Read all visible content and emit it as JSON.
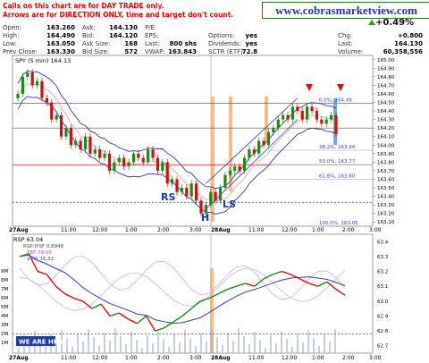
{
  "notes": {
    "line1": "Calls on this chart are for DAY TRADE only.",
    "line2": "Arrows are for DIRECTION ONLY, time and target don't count."
  },
  "site": "www.cobrasmarketview.com",
  "quote": {
    "change_pct": "+0.49%",
    "left_labels": [
      "Open:",
      "High:",
      "Low:",
      "Prev Close:"
    ],
    "left_values": [
      "163.260",
      "164.490",
      "163.050",
      "163.330"
    ],
    "mid_labels": [
      "Ask:",
      "Bid:",
      "Ask Size:",
      "Bid Size:"
    ],
    "mid_values": [
      "164.130",
      "164.120",
      "168",
      "572"
    ],
    "mid2_labels": [
      "P/E:",
      "EPS:",
      "Last:",
      "VWAP:"
    ],
    "mid2_values": [
      "",
      "",
      "800 shs",
      "163.843"
    ],
    "right_labels": [
      "Options:",
      "Dividends:",
      "SCTR (ETF):"
    ],
    "right_values": [
      "yes",
      "yes",
      "72.8"
    ],
    "far_labels": [
      "Chg:",
      "Last:",
      "Volume:"
    ],
    "far_values": [
      "+0.800",
      "164.130",
      "60,358,556"
    ]
  },
  "colors": {
    "price_up": "#1a8a1a",
    "price_down": "#cc1111",
    "bollinger": "#2b3fb0",
    "fib_line": "#cc2222",
    "highlight": "#f4a460",
    "label_blue": "#1638b8"
  },
  "chart_data": [
    {
      "type": "candlestick",
      "title": "SPY (5 min) 164.13",
      "x_ticks": [
        "27Aug",
        "11:00",
        "12:00",
        "1:00",
        "2:00",
        "3:00",
        "28Aug",
        "11:00",
        "12:00",
        "1:00",
        "2:00",
        "3:00"
      ],
      "y_ticks": [
        163.1,
        163.2,
        163.3,
        163.4,
        163.5,
        163.6,
        163.7,
        163.8,
        163.9,
        164.0,
        164.1,
        164.2,
        164.3,
        164.4,
        164.5,
        164.6,
        164.7,
        164.8,
        164.9,
        165.0
      ],
      "ylim": [
        163.05,
        165.05
      ],
      "close": [
        164.6,
        164.8,
        164.85,
        164.7,
        164.75,
        164.55,
        164.5,
        164.3,
        164.35,
        164.1,
        164.2,
        164.0,
        164.05,
        163.95,
        164.1,
        163.9,
        163.95,
        163.85,
        163.9,
        163.7,
        163.8,
        163.85,
        163.75,
        163.8,
        163.9,
        163.85,
        163.8,
        163.95,
        163.85,
        163.7,
        163.8,
        163.55,
        163.6,
        163.45,
        163.5,
        163.4,
        163.55,
        163.35,
        163.2,
        163.3,
        163.45,
        163.35,
        163.5,
        163.65,
        163.7,
        163.75,
        163.7,
        163.85,
        163.95,
        163.9,
        164.05,
        164.0,
        164.15,
        164.2,
        164.3,
        164.35,
        164.3,
        164.45,
        164.4,
        164.3,
        164.45,
        164.4,
        164.3,
        164.25,
        164.3,
        164.35,
        164.13
      ],
      "fib_levels": [
        {
          "label": "0.0%, 164.49",
          "value": 164.49
        },
        {
          "label": "38.2%, 163.94",
          "value": 163.94
        },
        {
          "label": "50.0%, 163.77",
          "value": 163.77
        },
        {
          "label": "61.8%, 163.60",
          "value": 163.6
        },
        {
          "label": "100.0%, 163.05",
          "value": 163.05
        }
      ],
      "horizontal_lines": [
        164.49,
        164.2,
        163.77,
        163.33
      ],
      "annotations": [
        "RS",
        "H",
        "LS"
      ]
    },
    {
      "type": "line",
      "title": "RSP 63.04",
      "legend": [
        "RSP:IYSF 0.8948",
        "TBT 79.05",
        "$VIX 16.32"
      ],
      "left_ticks": [
        "9M",
        "8M",
        "7M",
        "6M",
        "5M",
        "4M",
        "3M",
        "2M",
        "1M"
      ],
      "right_ticks": [
        63.4,
        63.3,
        63.2,
        63.1,
        63.0,
        62.9,
        62.8,
        62.7
      ],
      "x_ticks": [
        "27Aug",
        "11:00",
        "12:00",
        "1:00",
        "2:00",
        "3:00",
        "28Aug",
        "11:00",
        "12:00",
        "1:00",
        "2:00",
        "3:00"
      ],
      "ylim": [
        62.65,
        63.45
      ],
      "rsp": [
        63.3,
        63.32,
        63.2,
        63.18,
        63.1,
        63.05,
        63.02,
        63.0,
        62.95,
        62.98,
        62.9,
        62.92,
        62.88,
        62.85,
        62.9,
        62.8,
        62.82,
        62.86,
        62.9,
        62.95,
        63.0,
        63.02,
        63.05,
        63.08,
        63.1,
        63.12,
        63.1,
        63.15,
        63.18,
        63.2,
        63.18,
        63.15,
        63.12,
        63.1,
        63.13,
        63.08,
        63.04
      ],
      "banner": "WE ARE HERE!"
    }
  ]
}
